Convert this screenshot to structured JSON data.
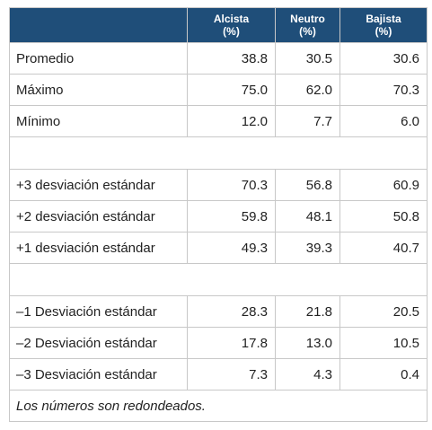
{
  "table": {
    "headers": [
      {
        "line1": "Alcista",
        "line2": "(%)"
      },
      {
        "line1": "Neutro",
        "line2": "(%)"
      },
      {
        "line1": "Bajista",
        "line2": "(%)"
      }
    ],
    "section1": [
      {
        "label": "Promedio",
        "values": [
          "38.8",
          "30.5",
          "30.6"
        ]
      },
      {
        "label": "Máximo",
        "values": [
          "75.0",
          "62.0",
          "70.3"
        ]
      },
      {
        "label": "Mínimo",
        "values": [
          "12.0",
          "7.7",
          "6.0"
        ]
      }
    ],
    "section2": [
      {
        "label": "+3 desviación estándar",
        "values": [
          "70.3",
          "56.8",
          "60.9"
        ]
      },
      {
        "label": "+2 desviación estándar",
        "values": [
          "59.8",
          "48.1",
          "50.8"
        ]
      },
      {
        "label": "+1 desviación estándar",
        "values": [
          "49.3",
          "39.3",
          "40.7"
        ]
      }
    ],
    "section3": [
      {
        "label": "–1 Desviación estándar",
        "values": [
          "28.3",
          "21.8",
          "20.5"
        ]
      },
      {
        "label": "–2 Desviación estándar",
        "values": [
          "17.8",
          "13.0",
          "10.5"
        ]
      },
      {
        "label": "–3 Desviación estándar",
        "values": [
          "7.3",
          "4.3",
          "0.4"
        ]
      }
    ],
    "note": "Los números son redondeados."
  },
  "colors": {
    "header_bg": "#1f4e79",
    "header_text": "#ffffff",
    "border": "#c8c8c8",
    "text": "#222222"
  }
}
